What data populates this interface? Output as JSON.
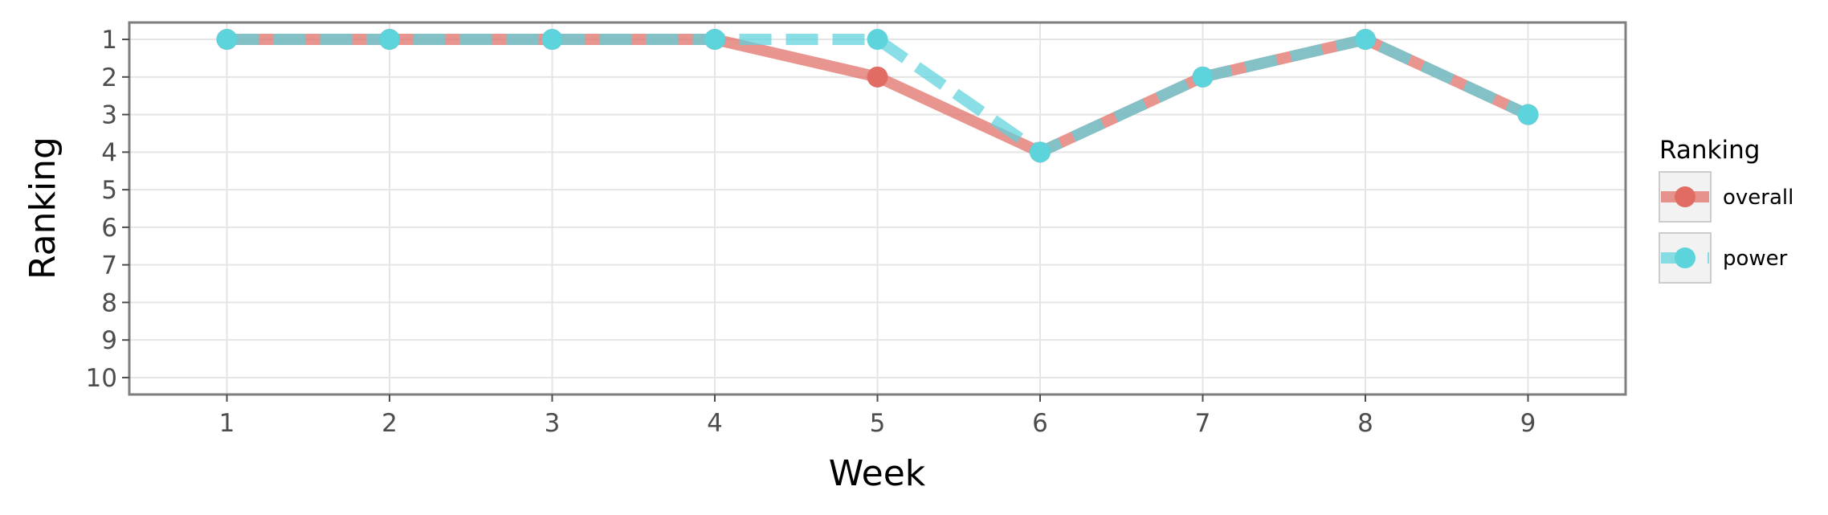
{
  "chart_data": {
    "type": "line",
    "xlabel": "Week",
    "ylabel": "Ranking",
    "x": [
      1,
      2,
      3,
      4,
      5,
      6,
      7,
      8,
      9
    ],
    "x_ticks": [
      "1",
      "2",
      "3",
      "4",
      "5",
      "6",
      "7",
      "8",
      "9"
    ],
    "y_ticks": [
      "1",
      "2",
      "3",
      "4",
      "5",
      "6",
      "7",
      "8",
      "9",
      "10"
    ],
    "xlim": [
      0.4,
      9.6
    ],
    "ylim": [
      10.45,
      0.55
    ],
    "y_reversed": true,
    "grid": true,
    "legend": {
      "title": "Ranking",
      "position": "right"
    },
    "series": [
      {
        "name": "overall",
        "values": [
          1,
          1,
          1,
          1,
          2,
          4,
          2,
          1,
          3
        ],
        "color": "#e06c64",
        "line_style": "solid"
      },
      {
        "name": "power",
        "values": [
          1,
          1,
          1,
          1,
          1,
          4,
          2,
          1,
          3
        ],
        "color": "#5dd3dc",
        "line_style": "dashed"
      }
    ]
  }
}
